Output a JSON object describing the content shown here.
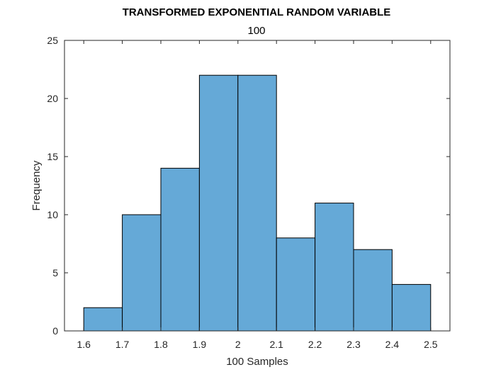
{
  "chart_data": {
    "type": "bar",
    "title": "TRANSFORMED EXPONENTIAL RANDOM VARIABLE",
    "subtitle": "100",
    "xlabel": "100 Samples",
    "ylabel": "Frequency",
    "bin_edges": [
      1.6,
      1.7,
      1.8,
      1.9,
      2.0,
      2.1,
      2.2,
      2.3,
      2.4,
      2.5
    ],
    "values": [
      2,
      10,
      14,
      22,
      22,
      8,
      11,
      7,
      4
    ],
    "xlim": [
      1.55,
      2.55
    ],
    "ylim": [
      0,
      25
    ],
    "xticks": [
      "1.6",
      "1.7",
      "1.8",
      "1.9",
      "2",
      "2.1",
      "2.2",
      "2.3",
      "2.4",
      "2.5"
    ],
    "yticks": [
      "0",
      "5",
      "10",
      "15",
      "20",
      "25"
    ],
    "grid": false,
    "bar_color": "#65a9d7",
    "edge_color": "#000000"
  }
}
